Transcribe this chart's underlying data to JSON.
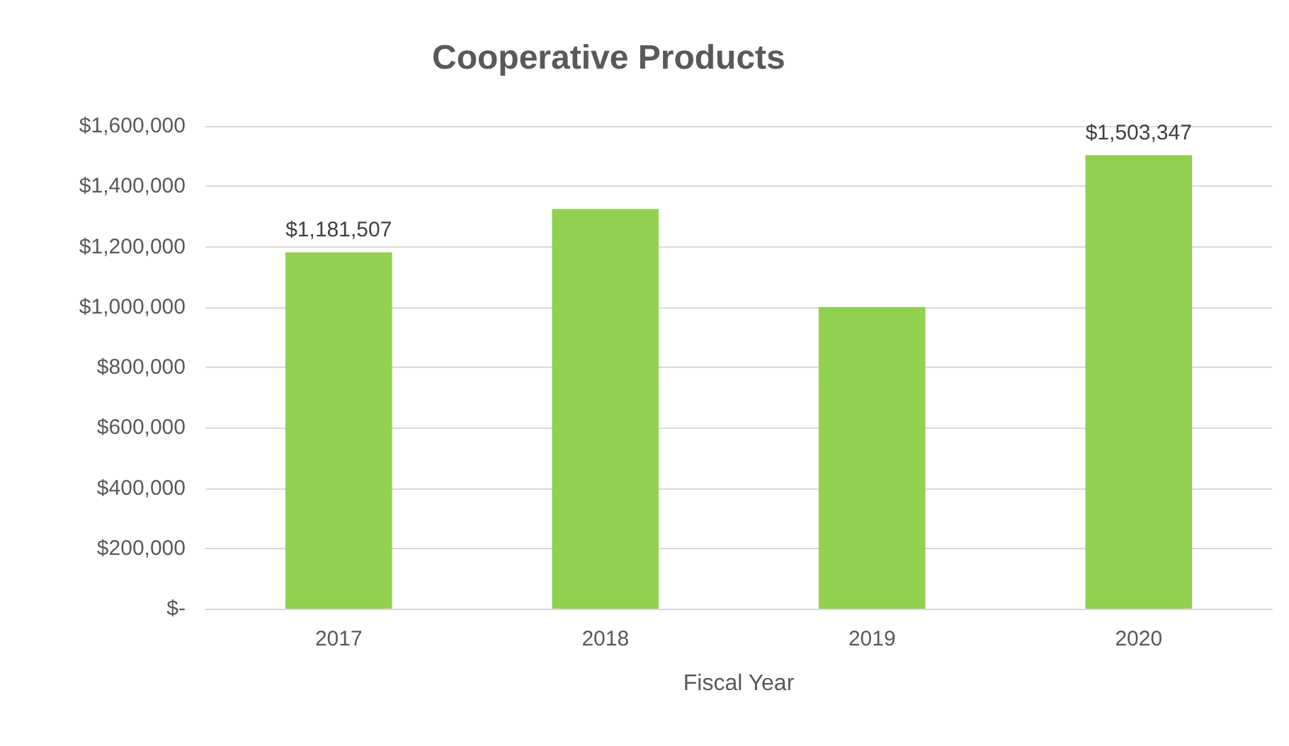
{
  "chart_data": {
    "type": "bar",
    "title": "Cooperative Products",
    "xlabel": "Fiscal Year",
    "categories": [
      "2017",
      "2018",
      "2019",
      "2020"
    ],
    "values": [
      1181507,
      1325000,
      1000000,
      1503347
    ],
    "value_labels": [
      "$1,181,507",
      null,
      null,
      "$1,503,347"
    ],
    "color": "#92d050",
    "ylim": [
      0,
      1600000
    ],
    "yticks": [
      {
        "value": 0,
        "label": "$-"
      },
      {
        "value": 200000,
        "label": "$200,000"
      },
      {
        "value": 400000,
        "label": "$400,000"
      },
      {
        "value": 600000,
        "label": "$600,000"
      },
      {
        "value": 800000,
        "label": "$800,000"
      },
      {
        "value": 1000000,
        "label": "$1,000,000"
      },
      {
        "value": 1200000,
        "label": "$1,200,000"
      },
      {
        "value": 1400000,
        "label": "$1,400,000"
      },
      {
        "value": 1600000,
        "label": "$1,600,000"
      }
    ],
    "grid": "y"
  }
}
